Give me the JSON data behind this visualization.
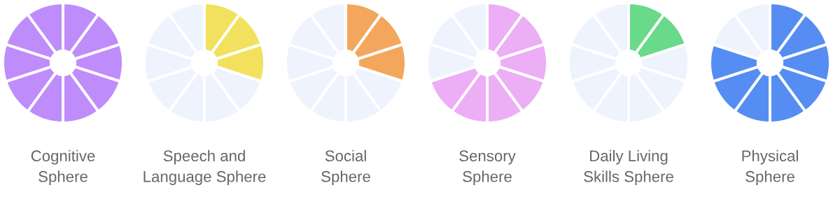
{
  "chart_data": [
    {
      "type": "donut",
      "title": "Cognitive\nSphere",
      "categories": [
        null,
        null,
        null,
        null,
        null,
        null,
        null,
        null,
        null,
        null
      ],
      "values": [
        10,
        10,
        10,
        10,
        10,
        10,
        10,
        10,
        10,
        10
      ],
      "colors": [
        "#bf8cfb",
        "#bf8cfb",
        "#bf8cfb",
        "#bf8cfb",
        "#bf8cfb",
        "#bf8cfb",
        "#bf8cfb",
        "#bf8cfb",
        "#bf8cfb",
        "#bf8cfb"
      ]
    },
    {
      "type": "donut",
      "title": "Speech and\nLanguage Sphere",
      "categories": [
        null,
        null,
        null,
        null,
        null,
        null,
        null,
        null,
        null,
        null
      ],
      "values": [
        10,
        10,
        10,
        10,
        10,
        10,
        10,
        10,
        10,
        10
      ],
      "colors": [
        "#f2e15c",
        "#f2e15c",
        "#f2e15c",
        "#eef3fe",
        "#eef3fe",
        "#eef3fe",
        "#eef3fe",
        "#eef3fe",
        "#eef3fe",
        "#eef3fe"
      ]
    },
    {
      "type": "donut",
      "title": "Social\nSphere",
      "categories": [
        null,
        null,
        null,
        null,
        null,
        null,
        null,
        null,
        null,
        null
      ],
      "values": [
        10,
        10,
        10,
        10,
        10,
        10,
        10,
        10,
        10,
        10
      ],
      "colors": [
        "#f3a75c",
        "#f3a75c",
        "#f3a75c",
        "#eef3fe",
        "#eef3fe",
        "#eef3fe",
        "#eef3fe",
        "#eef3fe",
        "#eef3fe",
        "#eef3fe"
      ]
    },
    {
      "type": "donut",
      "title": "Sensory\nSphere",
      "categories": [
        null,
        null,
        null,
        null,
        null,
        null,
        null,
        null,
        null,
        null
      ],
      "values": [
        10,
        10,
        10,
        10,
        10,
        10,
        10,
        10,
        10,
        10
      ],
      "colors": [
        "#ecaef5",
        "#ecaef5",
        "#ecaef5",
        "#ecaef5",
        "#ecaef5",
        "#ecaef5",
        "#ecaef5",
        "#eef3fe",
        "#eef3fe",
        "#eef3fe"
      ]
    },
    {
      "type": "donut",
      "title": "Daily Living\nSkills Sphere",
      "categories": [
        null,
        null,
        null,
        null,
        null,
        null,
        null,
        null,
        null,
        null
      ],
      "values": [
        10,
        10,
        10,
        10,
        10,
        10,
        10,
        10,
        10,
        10
      ],
      "colors": [
        "#69d98a",
        "#69d98a",
        "#eef3fe",
        "#eef3fe",
        "#eef3fe",
        "#eef3fe",
        "#eef3fe",
        "#eef3fe",
        "#eef3fe",
        "#eef3fe"
      ]
    },
    {
      "type": "donut",
      "title": "Physical\nSphere",
      "categories": [
        null,
        null,
        null,
        null,
        null,
        null,
        null,
        null,
        null,
        null
      ],
      "values": [
        10,
        10,
        10,
        10,
        10,
        10,
        10,
        10,
        10,
        10
      ],
      "colors": [
        "#568df2",
        "#568df2",
        "#568df2",
        "#568df2",
        "#568df2",
        "#568df2",
        "#568df2",
        "#568df2",
        "#eef3fe",
        "#eef3fe"
      ]
    }
  ]
}
